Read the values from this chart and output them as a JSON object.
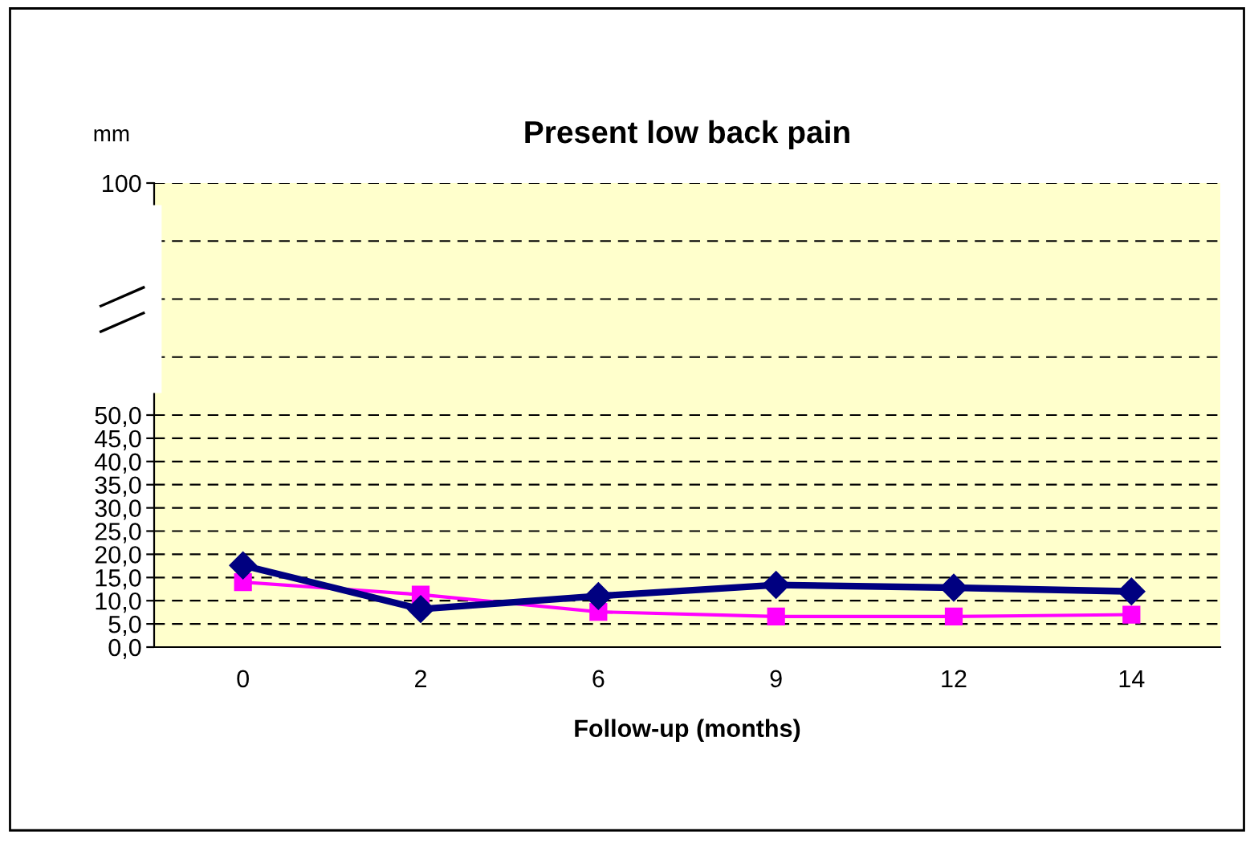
{
  "chart_data": {
    "type": "line",
    "title": "Present low back pain",
    "xlabel": "Follow-up (months)",
    "ylabel": "mm",
    "categories": [
      "0",
      "2",
      "6",
      "9",
      "12",
      "14"
    ],
    "series": [
      {
        "color": "#000080",
        "marker": "diamond",
        "values": [
          17.6,
          8.2,
          11.0,
          13.4,
          12.8,
          12.0
        ]
      },
      {
        "color": "#ff00ff",
        "marker": "square",
        "values": [
          14.0,
          11.3,
          7.6,
          6.6,
          6.6,
          7.0
        ]
      }
    ],
    "ylim": [
      0,
      100
    ],
    "yticks": [
      {
        "value": 0,
        "label": "0,0"
      },
      {
        "value": 5,
        "label": "5,0"
      },
      {
        "value": 10,
        "label": "10,0"
      },
      {
        "value": 15,
        "label": "15,0"
      },
      {
        "value": 20,
        "label": "20,0"
      },
      {
        "value": 25,
        "label": "25,0"
      },
      {
        "value": 30,
        "label": "30,0"
      },
      {
        "value": 35,
        "label": "35,0"
      },
      {
        "value": 40,
        "label": "40,0"
      },
      {
        "value": 45,
        "label": "45,0"
      },
      {
        "value": 50,
        "label": "50,0"
      },
      {
        "value": 62.5,
        "label": null
      },
      {
        "value": 75,
        "label": null
      },
      {
        "value": 87.5,
        "label": null
      },
      100
    ],
    "grid": "y",
    "line_style": "solid",
    "legend": false
  }
}
